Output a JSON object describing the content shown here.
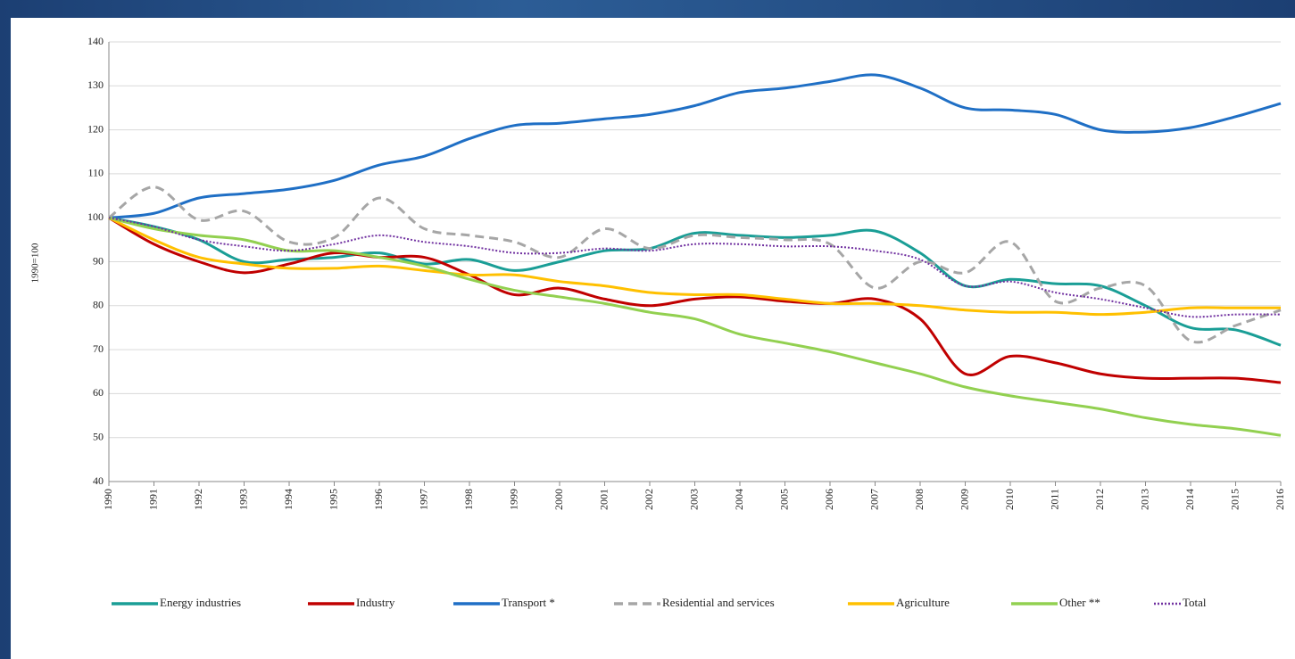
{
  "chart_data": {
    "type": "line",
    "y_label": "1990=100",
    "x": [
      1990,
      1991,
      1992,
      1993,
      1994,
      1995,
      1996,
      1997,
      1998,
      1999,
      2000,
      2001,
      2002,
      2003,
      2004,
      2005,
      2006,
      2007,
      2008,
      2009,
      2010,
      2011,
      2012,
      2013,
      2014,
      2015,
      2016
    ],
    "xlim": [
      1990,
      2016
    ],
    "xticks": [
      1990,
      1991,
      1992,
      1993,
      1994,
      1995,
      1996,
      1997,
      1998,
      1999,
      2000,
      2001,
      2002,
      2003,
      2004,
      2005,
      2006,
      2007,
      2008,
      2009,
      2010,
      2011,
      2012,
      2013,
      2014,
      2015,
      2016
    ],
    "ylim": [
      40,
      140
    ],
    "yticks": [
      40,
      50,
      60,
      70,
      80,
      90,
      100,
      110,
      120,
      130,
      140
    ],
    "grid": true,
    "legend": "bottom",
    "series": [
      {
        "name": "Energy industries",
        "color": "#1a9e96",
        "style": "solid",
        "values": [
          100,
          98,
          95,
          90,
          90.5,
          91,
          92,
          89.5,
          90.5,
          88,
          90,
          92.5,
          93,
          96.5,
          96,
          95.5,
          96,
          97,
          92,
          84.5,
          86,
          85,
          84.5,
          80,
          75,
          74.5,
          71
        ]
      },
      {
        "name": "Industry",
        "color": "#c00000",
        "style": "solid",
        "values": [
          100,
          94,
          90,
          87.5,
          89.5,
          92,
          91,
          91,
          87,
          82.5,
          84,
          81.5,
          80,
          81.5,
          82,
          81,
          80.5,
          81.5,
          77,
          64.5,
          68.5,
          67,
          64.5,
          63.5,
          63.5,
          63.5,
          62.5
        ]
      },
      {
        "name": "Transport *",
        "color": "#1f6fc5",
        "style": "solid",
        "values": [
          100,
          101,
          104.5,
          105.5,
          106.5,
          108.5,
          112,
          114,
          118,
          121,
          121.5,
          122.5,
          123.5,
          125.5,
          128.5,
          129.5,
          131,
          132.5,
          129.5,
          125,
          124.5,
          123.5,
          120,
          119.5,
          120.5,
          123,
          126
        ]
      },
      {
        "name": "Residential and services",
        "color": "#a6a6a6",
        "style": "dashed",
        "values": [
          100,
          107,
          99.5,
          101.5,
          94.5,
          95.5,
          104.5,
          97.5,
          96,
          94.5,
          91,
          97.5,
          93,
          96,
          95.5,
          95,
          94,
          84,
          90,
          87.5,
          94.5,
          81,
          84,
          84.5,
          72,
          75.5,
          79
        ]
      },
      {
        "name": "Agriculture",
        "color": "#ffc000",
        "style": "solid",
        "values": [
          100,
          95,
          91,
          89.5,
          88.5,
          88.5,
          89,
          88,
          87,
          87,
          85.5,
          84.5,
          83,
          82.5,
          82.5,
          81.5,
          80.5,
          80.5,
          80,
          79,
          78.5,
          78.5,
          78,
          78.5,
          79.5,
          79.5,
          79.5
        ]
      },
      {
        "name": "Other **",
        "color": "#92d050",
        "style": "solid",
        "values": [
          100,
          97.5,
          96,
          95,
          92.5,
          92.5,
          91,
          89,
          86,
          83.5,
          82,
          80.5,
          78.5,
          77,
          73.5,
          71.5,
          69.5,
          67,
          64.5,
          61.5,
          59.5,
          58,
          56.5,
          54.5,
          53,
          52,
          50.5
        ]
      },
      {
        "name": "Total",
        "color": "#7030a0",
        "style": "dotted",
        "values": [
          100,
          98,
          95,
          93.5,
          92.5,
          94,
          96,
          94.5,
          93.5,
          92,
          92,
          93,
          92.5,
          94,
          94,
          93.5,
          93.5,
          92.5,
          90.5,
          84.5,
          85.5,
          83,
          81.5,
          79.5,
          77.5,
          78,
          78
        ]
      }
    ]
  }
}
